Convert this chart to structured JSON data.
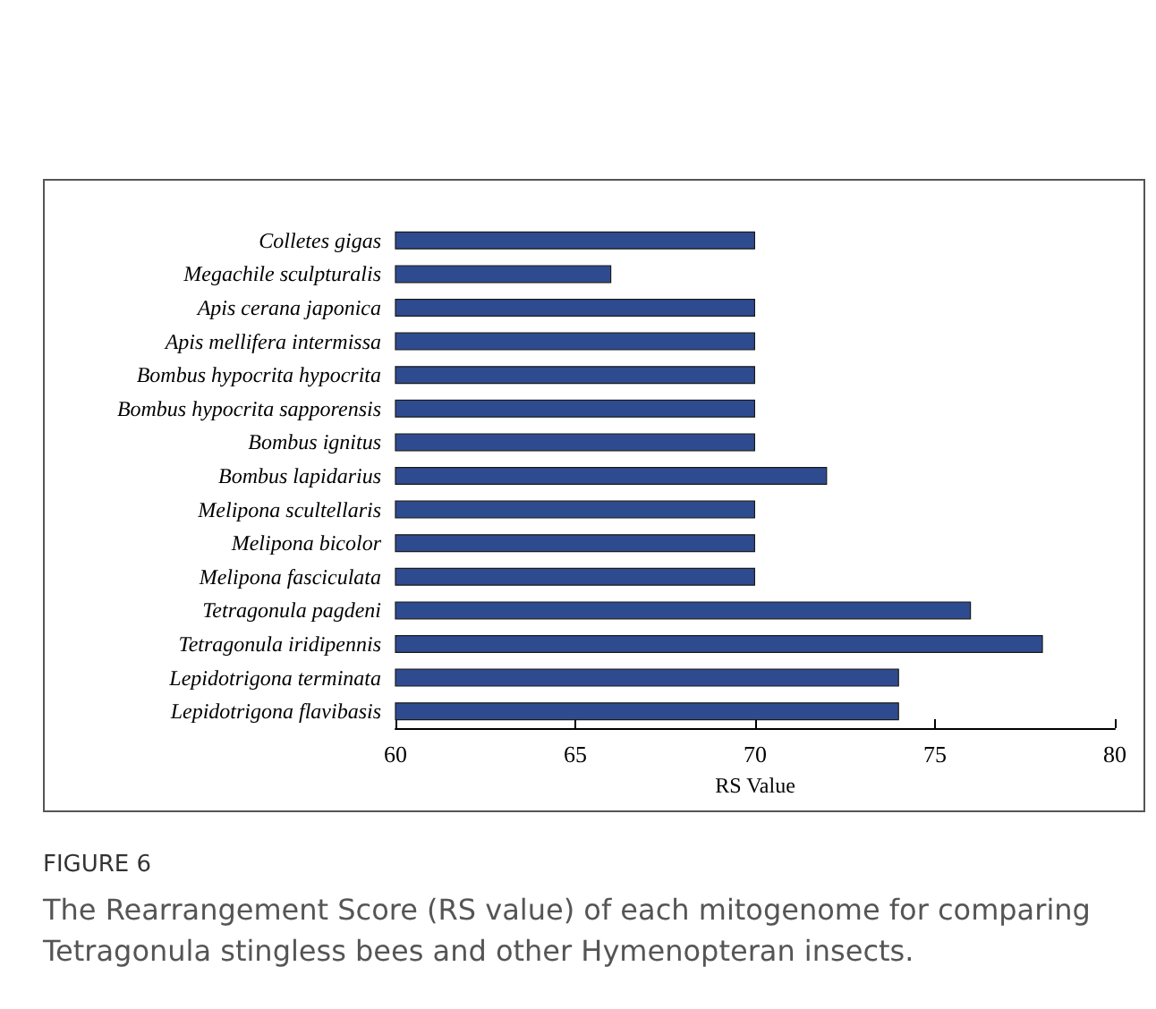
{
  "chart_data": {
    "type": "bar",
    "orientation": "horizontal",
    "xlabel": "RS Value",
    "categories": [
      "Colletes gigas",
      "Megachile sculpturalis",
      "Apis cerana japonica",
      "Apis mellifera intermissa",
      "Bombus hypocrita hypocrita",
      "Bombus hypocrita sapporensis",
      "Bombus ignitus",
      "Bombus lapidarius",
      "Melipona scultellaris",
      "Melipona bicolor",
      "Melipona fasciculata",
      "Tetragonula pagdeni",
      "Tetragonula iridipennis",
      "Lepidotrigona terminata",
      "Lepidotrigona flavibasis"
    ],
    "values": [
      70,
      66,
      70,
      70,
      70,
      70,
      70,
      72,
      70,
      70,
      70,
      76,
      78,
      74,
      74
    ],
    "color": "#2f4b8f",
    "xlim": [
      60,
      80
    ],
    "xticks": [
      60,
      65,
      70,
      75,
      80
    ],
    "grid": false,
    "annotations": [
      "FIGURE 6",
      "The Rearrangement Score (RS value) of each mitogenome for comparing Tetragonula stingless bees and other Hymenopteran insects."
    ]
  }
}
